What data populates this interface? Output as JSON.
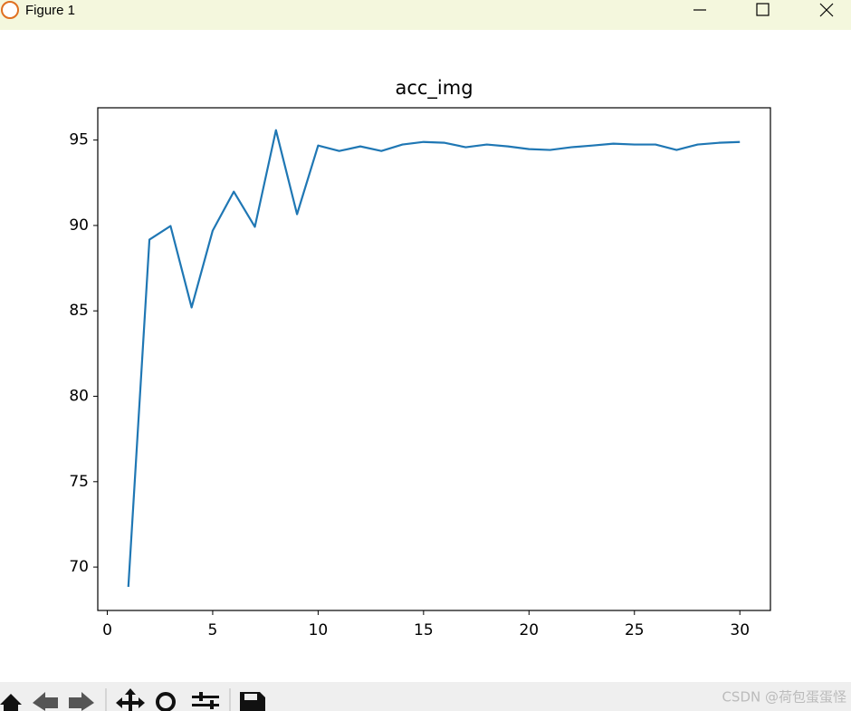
{
  "window": {
    "title": "Figure 1"
  },
  "watermark": "CSDN @荷包蛋蛋怪",
  "chart_data": {
    "type": "line",
    "title": "acc_img",
    "x": [
      1,
      2,
      3,
      4,
      5,
      6,
      7,
      8,
      9,
      10,
      11,
      12,
      13,
      14,
      15,
      16,
      17,
      18,
      19,
      20,
      21,
      22,
      23,
      24,
      25,
      26,
      27,
      28,
      29,
      30
    ],
    "values": [
      68.84,
      89.17,
      89.97,
      85.2,
      89.7,
      91.98,
      89.92,
      95.58,
      90.66,
      94.68,
      94.36,
      94.63,
      94.36,
      94.74,
      94.89,
      94.84,
      94.58,
      94.74,
      94.63,
      94.47,
      94.42,
      94.58,
      94.68,
      94.79,
      94.74,
      94.74,
      94.42,
      94.74,
      94.84,
      94.89
    ],
    "color": "#1f77b4",
    "xlim": [
      -0.45,
      31.45
    ],
    "xticks": [
      0,
      5,
      10,
      15,
      20,
      25,
      30
    ],
    "ylim": [
      67.46,
      96.89
    ],
    "yticks": [
      70,
      75,
      80,
      85,
      90,
      95
    ],
    "grid": false
  }
}
